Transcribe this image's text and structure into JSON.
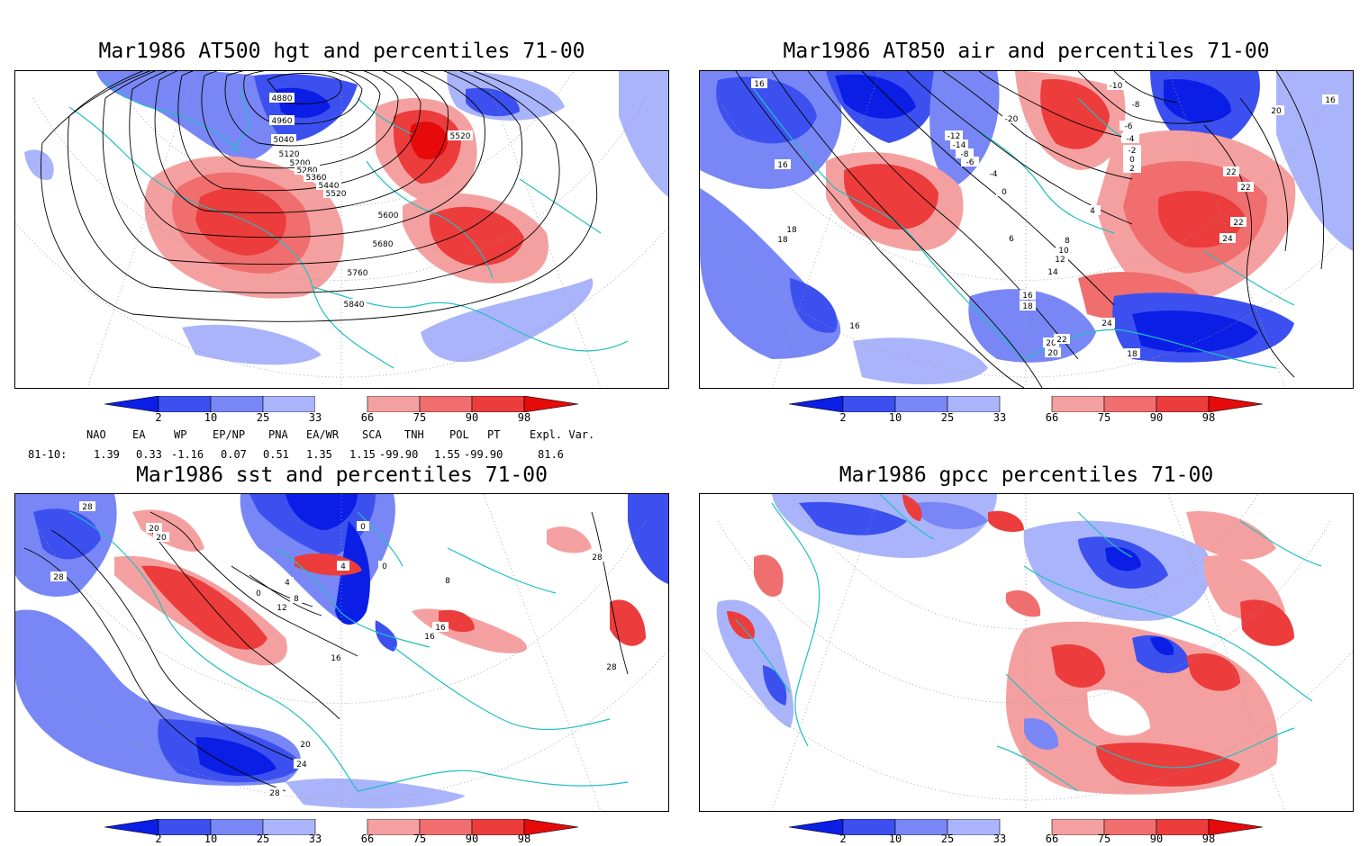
{
  "panels": [
    {
      "id": "hgt500",
      "title": "Mar1986 AT500 hgt and percentiles 71-00",
      "contour_labels": [
        "4880",
        "4960",
        "5040",
        "5120",
        "5200",
        "5280",
        "5360",
        "5440",
        "5520",
        "5520",
        "5600",
        "5680",
        "5760",
        "5840"
      ]
    },
    {
      "id": "air850",
      "title": "Mar1986 AT850 air and percentiles 71-00",
      "contour_labels": [
        "16",
        "16",
        "18",
        "18",
        "16",
        "-10",
        "-8",
        "-6",
        "-4",
        "-2",
        "0",
        "2",
        "-20",
        "-12",
        "-14",
        "-8",
        "-6",
        "-4",
        "0",
        "4",
        "6",
        "8",
        "10",
        "12",
        "14",
        "16",
        "18",
        "20",
        "22",
        "24",
        "22",
        "20",
        "18",
        "24",
        "22",
        "20",
        "22",
        "16"
      ]
    },
    {
      "id": "sst",
      "title": "Mar1986 sst and percentiles 71-00",
      "contour_labels": [
        "28",
        "28",
        "20",
        "20",
        "0",
        "0",
        "4",
        "8",
        "12",
        "16",
        "16",
        "16",
        "4",
        "0",
        "8",
        "20",
        "24",
        "28",
        "28",
        "28"
      ]
    },
    {
      "id": "gpcc",
      "title": "Mar1986 gpcc percentiles 71-00",
      "contour_labels": []
    }
  ],
  "colorbar": {
    "ticks": [
      "2",
      "10",
      "25",
      "33",
      "66",
      "75",
      "90",
      "98"
    ],
    "colors": {
      "c1": "#0a1ee6",
      "c2": "#3c50f0",
      "c3": "#7887f5",
      "c4": "#aab4fa",
      "w": "#ffffff",
      "c5": "#f5a0a0",
      "c6": "#f06e6e",
      "c7": "#ec3c3c",
      "c8": "#e60a0a"
    }
  },
  "indices": {
    "headers": [
      "NAO",
      "EA",
      "WP",
      "EP/NP",
      "PNA",
      "EA/WR",
      "SCA",
      "TNH",
      "POL",
      "PT",
      "Expl. Var."
    ],
    "period": "81-10:",
    "values": [
      "1.39",
      "0.33",
      "-1.16",
      "0.07",
      "0.51",
      "1.35",
      "1.15",
      "-99.90",
      "1.55",
      "-99.90",
      "81.6"
    ]
  },
  "colors": {
    "coast": "#20c0c0",
    "contour": "#000000",
    "grid": "#9a9a9a"
  }
}
